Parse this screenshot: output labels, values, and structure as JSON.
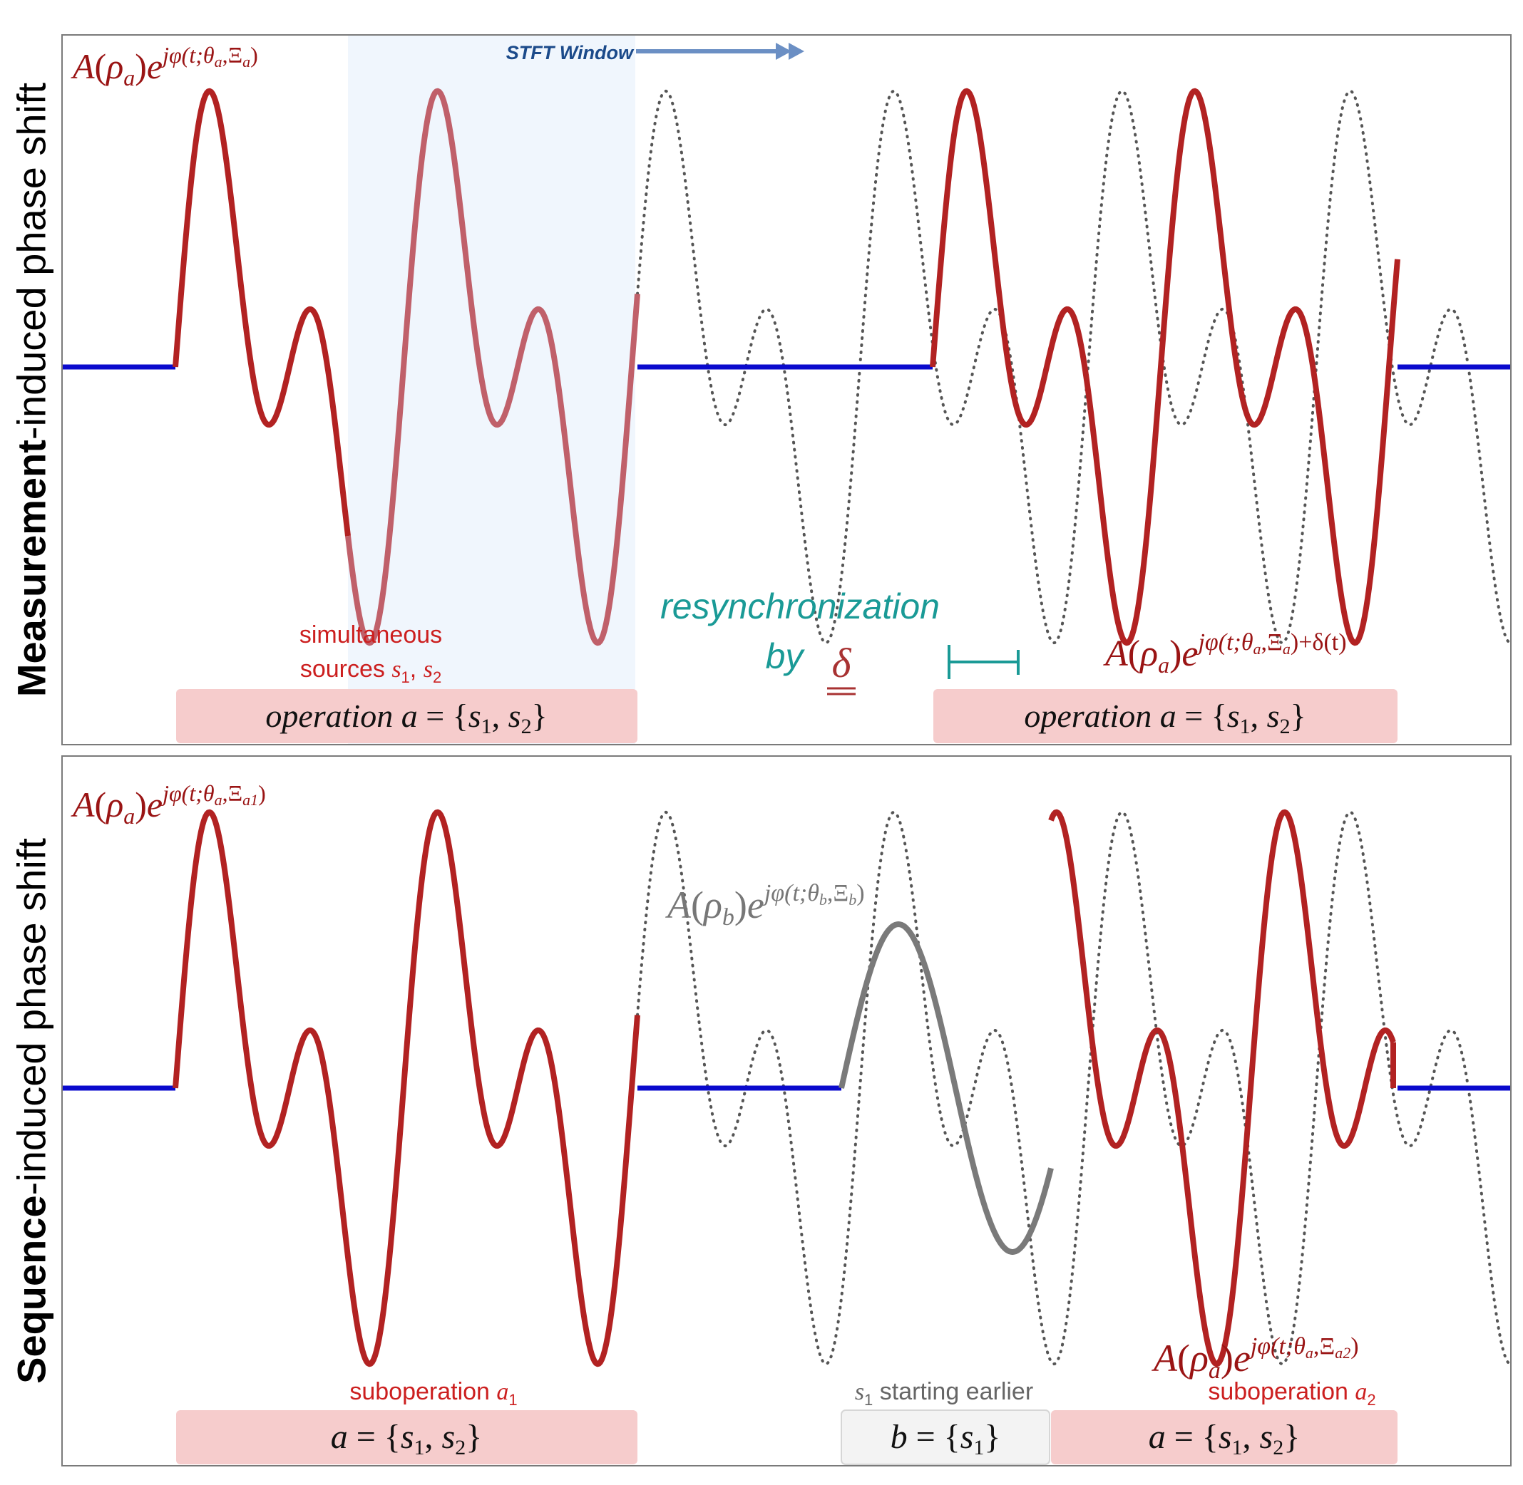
{
  "top_panel": {
    "ylabel_bold": "Measurement",
    "ylabel_rest": "-induced phase shift",
    "formula_left": "A(ρa)ejφ(t;θa,Ξa)",
    "stft_label": "STFT Window",
    "sim_sources_line1": "simultaneous",
    "sim_sources_line2": "sources s1, s2",
    "resync_line1": "resynchronization",
    "resync_line2": "by",
    "delta_symbol": "δ",
    "formula_right": "A(ρa)ejφ(t;θa,Ξa)+δ(t)",
    "op_box_left": "operation a = {s1, s2}",
    "op_box_right": "operation a = {s1, s2}"
  },
  "bottom_panel": {
    "ylabel_bold": "Sequence",
    "ylabel_rest": "-induced phase shift",
    "formula_left": "A(ρa)ejφ(t;θa,Ξa1)",
    "formula_b": "A(ρb)ejφ(t;θb,Ξb)",
    "formula_right": "A(ρa)ejφ(t;θa,Ξa2)",
    "subop_a1": "suboperation a1",
    "s1_earlier": "s1 starting earlier",
    "subop_a2": "suboperation a2",
    "box_a_left": "a = {s1, s2}",
    "box_b": "b = {s1}",
    "box_a_right": "a = {s1, s2}"
  },
  "colors": {
    "signal_red": "#b22222",
    "signal_light_red": "#c0606a",
    "baseline_blue": "#0a0acd",
    "reference_gray": "#555555",
    "b_gray": "#7a7a7a",
    "teal": "#1a9a96",
    "box_pink": "#f6cccc",
    "box_gray": "#f3f3f3",
    "stft_blue": "#6b8fc4",
    "stft_text": "#1b4a8a",
    "stft_fill": "#f0f6fd"
  }
}
